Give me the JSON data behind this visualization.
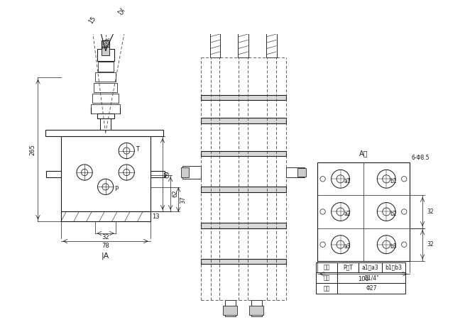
{
  "bg_color": "#ffffff",
  "line_color": "#1a1a1a",
  "dim_265": "265",
  "dim_69": "69",
  "dim_62": "62",
  "dim_37": "37",
  "dim_32": "32",
  "dim_78": "78",
  "dim_13": "13",
  "dim_100": "100",
  "dim_6hole": "6-Φ8.5",
  "label_A": "A向",
  "label_IA": "|A",
  "label_T": "T",
  "label_P": "P",
  "label_a1": "a1",
  "label_a2": "a2",
  "label_a3": "a3",
  "label_b1": "b1",
  "label_b2": "b2",
  "label_b3": "b3",
  "angle_15": "15",
  "angle_25": "25",
  "tbl_h0": "油口",
  "tbl_h1": "P、T",
  "tbl_h2": "a1～a3",
  "tbl_h3": "b1～b3",
  "tbl_r1c0": "尺寸",
  "tbl_r1c1": "G1/4\"",
  "tbl_r2c0": "管平",
  "tbl_r2c1": "Φ27"
}
